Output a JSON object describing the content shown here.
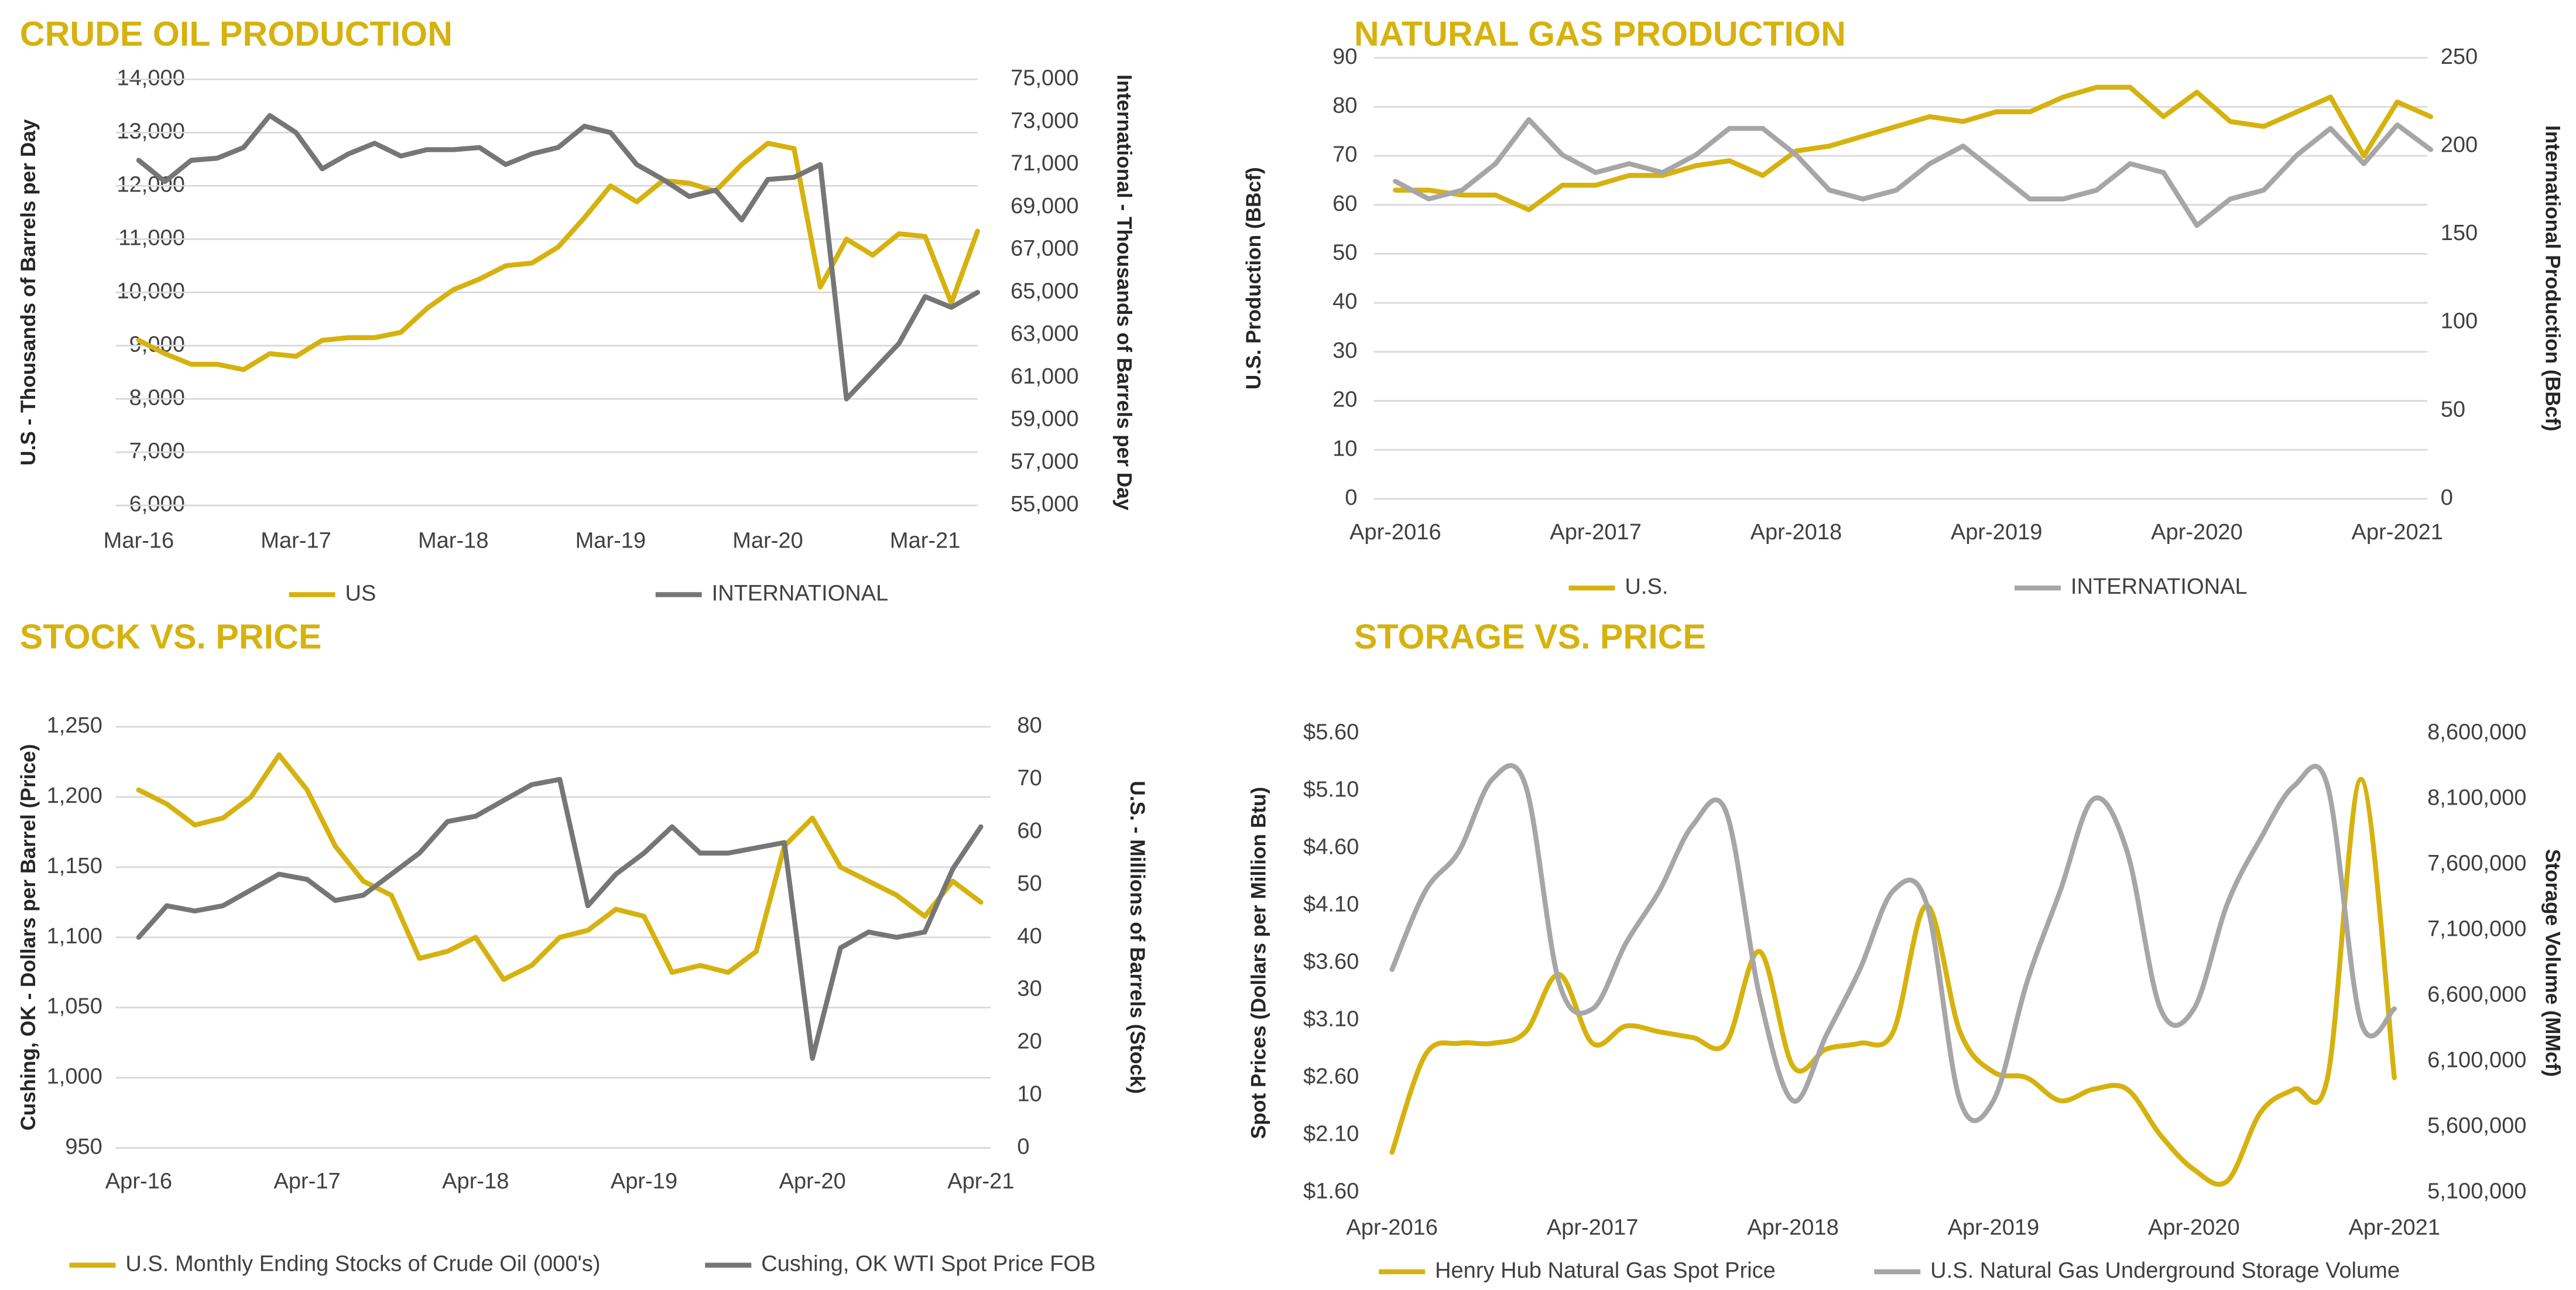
{
  "chart_data": [
    {
      "type": "line",
      "title": "CRUDE OIL PRODUCTION",
      "y_label": "U.S - Thousands of Barrels per Day",
      "y2_label": "International - Thousands of Barrels per Day",
      "categories": [
        "Mar-16",
        null,
        null,
        null,
        null,
        null,
        "Mar-17",
        null,
        null,
        null,
        null,
        null,
        "Mar-18",
        null,
        null,
        null,
        null,
        null,
        "Mar-19",
        null,
        null,
        null,
        null,
        null,
        "Mar-20",
        null,
        null,
        null,
        null,
        null,
        "Mar-21",
        null,
        null
      ],
      "series": [
        {
          "name": "US",
          "color": "#d6b20f",
          "values": [
            9100,
            8850,
            8650,
            8650,
            8550,
            8850,
            8800,
            9100,
            9150,
            9150,
            9250,
            9700,
            10050,
            10250,
            10500,
            10550,
            10850,
            11400,
            12000,
            11700,
            12100,
            12050,
            11900,
            12400,
            12800,
            12700,
            10100,
            11000,
            10700,
            11100,
            11050,
            9800,
            11150
          ]
        },
        {
          "name": "INTERNATIONAL",
          "color": "#767676",
          "axis": "y2",
          "values": [
            71200,
            70200,
            71200,
            71300,
            71800,
            73300,
            72500,
            70800,
            71500,
            72000,
            71400,
            71700,
            71700,
            71800,
            71000,
            71500,
            71800,
            72800,
            72500,
            71000,
            70300,
            69500,
            69800,
            68400,
            70300,
            70400,
            71000,
            60000,
            61300,
            62600,
            64800,
            64300,
            65000
          ]
        }
      ],
      "ylim": [
        6000,
        14000
      ],
      "yticks": [
        {
          "value": 6000,
          "label": "6,000"
        },
        {
          "value": 7000,
          "label": "7,000"
        },
        {
          "value": 8000,
          "label": "8,000"
        },
        {
          "value": 9000,
          "label": "9,000"
        },
        {
          "value": 10000,
          "label": "10,000"
        },
        {
          "value": 11000,
          "label": "11,000"
        },
        {
          "value": 12000,
          "label": "12,000"
        },
        {
          "value": 13000,
          "label": "13,000"
        },
        {
          "value": 14000,
          "label": "14,000"
        }
      ],
      "y2lim": [
        55000,
        75000
      ],
      "y2ticks": [
        {
          "value": 55000,
          "label": "55,000"
        },
        {
          "value": 57000,
          "label": "57,000"
        },
        {
          "value": 59000,
          "label": "59,000"
        },
        {
          "value": 61000,
          "label": "61,000"
        },
        {
          "value": 63000,
          "label": "63,000"
        },
        {
          "value": 65000,
          "label": "65,000"
        },
        {
          "value": 67000,
          "label": "67,000"
        },
        {
          "value": 69000,
          "label": "69,000"
        },
        {
          "value": 71000,
          "label": "71,000"
        },
        {
          "value": 73000,
          "label": "73,000"
        },
        {
          "value": 75000,
          "label": "75,000"
        }
      ],
      "grid": true,
      "legend": "bottom"
    },
    {
      "type": "line",
      "title": "NATURAL GAS PRODUCTION",
      "y_label": "U.S.  Production (BBcf)",
      "y2_label": "International Production (BBcf)",
      "categories": [
        "Apr-2016",
        null,
        null,
        null,
        null,
        null,
        "Apr-2017",
        null,
        null,
        null,
        null,
        null,
        "Apr-2018",
        null,
        null,
        null,
        null,
        null,
        "Apr-2019",
        null,
        null,
        null,
        null,
        null,
        "Apr-2020",
        null,
        null,
        null,
        null,
        null,
        "Apr-2021",
        null
      ],
      "series": [
        {
          "name": "U.S.",
          "color": "#d6b20f",
          "values": [
            63,
            63,
            62,
            62,
            59,
            64,
            64,
            66,
            66,
            68,
            69,
            66,
            71,
            72,
            74,
            76,
            78,
            77,
            79,
            79,
            82,
            84,
            84,
            78,
            83,
            77,
            76,
            79,
            82,
            70,
            81,
            78
          ]
        },
        {
          "name": "INTERNATIONAL",
          "color": "#a6a6a6",
          "axis": "y2",
          "values": [
            180,
            170,
            175,
            190,
            215,
            195,
            185,
            190,
            185,
            195,
            210,
            210,
            195,
            175,
            170,
            175,
            190,
            200,
            185,
            170,
            170,
            175,
            190,
            185,
            155,
            170,
            175,
            195,
            210,
            190,
            212,
            198
          ]
        }
      ],
      "ylim": [
        0,
        90
      ],
      "yticks": [
        0,
        10,
        20,
        30,
        40,
        50,
        60,
        70,
        80,
        90
      ],
      "y2lim": [
        0,
        250
      ],
      "y2ticks": [
        0,
        50,
        100,
        150,
        200,
        250
      ],
      "grid": true,
      "legend": "bottom"
    },
    {
      "type": "line",
      "title": "STOCK VS. PRICE",
      "y_label": "Cushing, OK - Dollars per Barrel (Price)",
      "y2_label": "U.S. - Millions of Barrels (Stock)",
      "categories": [
        "Apr-16",
        null,
        null,
        null,
        null,
        null,
        "Apr-17",
        null,
        null,
        null,
        null,
        null,
        "Apr-18",
        null,
        null,
        null,
        null,
        null,
        "Apr-19",
        null,
        null,
        null,
        null,
        null,
        "Apr-20",
        null,
        null,
        null,
        null,
        null,
        "Apr-21"
      ],
      "series": [
        {
          "name": "U.S. Monthly Ending Stocks of Crude Oil (000's)",
          "color": "#d6b20f",
          "values": [
            1205,
            1195,
            1180,
            1185,
            1200,
            1230,
            1205,
            1165,
            1140,
            1130,
            1085,
            1090,
            1100,
            1070,
            1080,
            1100,
            1105,
            1120,
            1115,
            1075,
            1080,
            1075,
            1090,
            1165,
            1185,
            1150,
            1140,
            1130,
            1115,
            1140,
            1125
          ]
        },
        {
          "name": "Cushing, OK WTI Spot Price FOB",
          "color": "#767676",
          "axis": "y2",
          "values": [
            40,
            46,
            45,
            46,
            49,
            52,
            51,
            47,
            48,
            52,
            56,
            62,
            63,
            66,
            69,
            70,
            46,
            52,
            56,
            61,
            56,
            56,
            57,
            58,
            17,
            38,
            41,
            40,
            41,
            53,
            61
          ]
        }
      ],
      "ylim": [
        950,
        1250
      ],
      "yticks": [
        950,
        {
          "value": 1000,
          "label": "1,000"
        },
        {
          "value": 1050,
          "label": "1,050"
        },
        {
          "value": 1100,
          "label": "1,100"
        },
        {
          "value": 1150,
          "label": "1,150"
        },
        {
          "value": 1200,
          "label": "1,200"
        },
        {
          "value": 1250,
          "label": "1,250"
        }
      ],
      "y2lim": [
        0,
        80
      ],
      "y2ticks": [
        0,
        10,
        20,
        30,
        40,
        50,
        60,
        70,
        80
      ],
      "grid": true,
      "legend": "bottom"
    },
    {
      "type": "line",
      "title": "STORAGE VS. PRICE",
      "smooth": true,
      "y_label": "Spot Prices (Dollars per Million Btu)",
      "y2_label": "Storage Volume (MMcf)",
      "categories": [
        "Apr-2016",
        null,
        null,
        null,
        null,
        null,
        "Apr-2017",
        null,
        null,
        null,
        null,
        null,
        "Apr-2018",
        null,
        null,
        null,
        null,
        null,
        "Apr-2019",
        null,
        null,
        null,
        null,
        null,
        "Apr-2020",
        null,
        null,
        null,
        null,
        null,
        "Apr-2021"
      ],
      "series": [
        {
          "name": "Henry Hub Natural Gas Spot Price",
          "color": "#d6b20f",
          "values": [
            1.95,
            2.8,
            2.9,
            2.9,
            3.0,
            3.5,
            2.9,
            3.05,
            3.0,
            2.95,
            2.9,
            3.7,
            2.7,
            2.85,
            2.9,
            3.0,
            4.1,
            3.0,
            2.65,
            2.6,
            2.4,
            2.5,
            2.5,
            2.1,
            1.8,
            1.7,
            2.3,
            2.5,
            2.6,
            5.2,
            2.6
          ]
        },
        {
          "name": "U.S. Natural Gas Underground Storage Volume",
          "color": "#a6a6a6",
          "axis": "y2",
          "values": [
            6800000,
            7400000,
            7700000,
            8250000,
            8200000,
            6700000,
            6500000,
            7000000,
            7400000,
            7900000,
            8000000,
            6600000,
            5800000,
            6300000,
            6800000,
            7400000,
            7300000,
            5800000,
            5800000,
            6700000,
            7400000,
            8100000,
            7700000,
            6500000,
            6500000,
            7300000,
            7800000,
            8200000,
            8200000,
            6400000,
            6500000
          ]
        }
      ],
      "ylim": [
        1.6,
        5.6
      ],
      "yticks": [
        {
          "value": 1.6,
          "label": "$1.60"
        },
        {
          "value": 2.1,
          "label": "$2.10"
        },
        {
          "value": 2.6,
          "label": "$2.60"
        },
        {
          "value": 3.1,
          "label": "$3.10"
        },
        {
          "value": 3.6,
          "label": "$3.60"
        },
        {
          "value": 4.1,
          "label": "$4.10"
        },
        {
          "value": 4.6,
          "label": "$4.60"
        },
        {
          "value": 5.1,
          "label": "$5.10"
        },
        {
          "value": 5.6,
          "label": "$5.60"
        }
      ],
      "y2lim": [
        5100000,
        8600000
      ],
      "y2ticks": [
        {
          "value": 5100000,
          "label": "5,100,000"
        },
        {
          "value": 5600000,
          "label": "5,600,000"
        },
        {
          "value": 6100000,
          "label": "6,100,000"
        },
        {
          "value": 6600000,
          "label": "6,600,000"
        },
        {
          "value": 7100000,
          "label": "7,100,000"
        },
        {
          "value": 7600000,
          "label": "7,600,000"
        },
        {
          "value": 8100000,
          "label": "8,100,000"
        },
        {
          "value": 8600000,
          "label": "8,600,000"
        }
      ],
      "grid": false,
      "legend": "bottom"
    }
  ]
}
